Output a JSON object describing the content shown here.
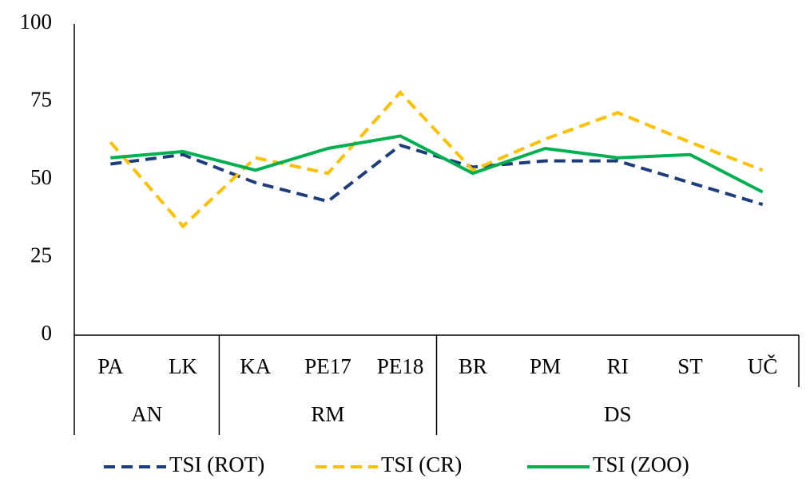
{
  "chart_data": {
    "type": "line",
    "category_groups": [
      {
        "name": "AN",
        "categories": [
          "PA",
          "LK"
        ]
      },
      {
        "name": "RM",
        "categories": [
          "KA",
          "PE17",
          "PE18"
        ]
      },
      {
        "name": "DS",
        "categories": [
          "BR",
          "PM",
          "RI",
          "ST",
          "UČ"
        ]
      }
    ],
    "series": [
      {
        "name": "TSI (ROT)",
        "color": "#1f3d7a",
        "dashed": true,
        "values": [
          55,
          58,
          49,
          43,
          61,
          54,
          56,
          56,
          49,
          42
        ]
      },
      {
        "name": "TSI (CR)",
        "color": "#ffc000",
        "dashed": true,
        "values": [
          62,
          35,
          57,
          52,
          78,
          53,
          63,
          71.5,
          62,
          53
        ]
      },
      {
        "name": "TSI (ZOO)",
        "color": "#00b050",
        "dashed": false,
        "values": [
          57,
          59,
          53,
          60,
          64,
          52,
          60,
          57,
          58,
          46
        ]
      }
    ],
    "ylim": [
      0,
      100
    ],
    "yticks": [
      0,
      25,
      50,
      75,
      100
    ],
    "grid": false,
    "legend": "bottom"
  }
}
